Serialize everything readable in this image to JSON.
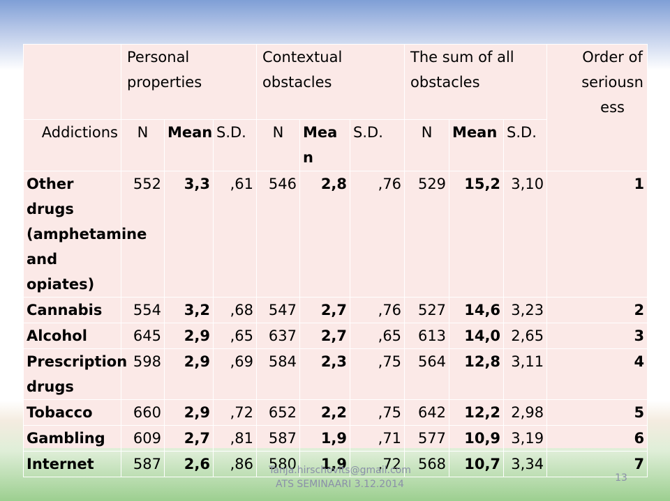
{
  "header": {
    "personal": "Personal properties",
    "contextual": "Contextual obstacles",
    "sum": "The sum of all obstacles",
    "order": "Order of seriousness"
  },
  "subheader": {
    "addictions": "Addictions",
    "n1": "N",
    "mean1": "Mean",
    "sd1": "S.D.",
    "n2": "N",
    "mean2": "Mean",
    "sd2": "S.D.",
    "n3": "N",
    "mean3": "Mean",
    "sd3": "S.D."
  },
  "rows": [
    {
      "label": "Other drugs (amphetamine and opiates)",
      "n1": "552",
      "m1": "3,3",
      "s1": ",61",
      "n2": "546",
      "m2": "2,8",
      "s2": ",76",
      "n3": "529",
      "m3": "15,2",
      "s3": "3,10",
      "order": "1"
    },
    {
      "label": "Cannabis",
      "n1": "554",
      "m1": "3,2",
      "s1": ",68",
      "n2": "547",
      "m2": "2,7",
      "s2": ",76",
      "n3": "527",
      "m3": "14,6",
      "s3": "3,23",
      "order": "2"
    },
    {
      "label": "Alcohol",
      "n1": "645",
      "m1": "2,9",
      "s1": ",65",
      "n2": "637",
      "m2": "2,7",
      "s2": ",65",
      "n3": "613",
      "m3": "14,0",
      "s3": "2,65",
      "order": "3"
    },
    {
      "label": "Prescription drugs",
      "n1": "598",
      "m1": "2,9",
      "s1": ",69",
      "n2": "584",
      "m2": "2,3",
      "s2": ",75",
      "n3": "564",
      "m3": "12,8",
      "s3": "3,11",
      "order": "4"
    },
    {
      "label": "Tobacco",
      "n1": "660",
      "m1": "2,9",
      "s1": ",72",
      "n2": "652",
      "m2": "2,2",
      "s2": ",75",
      "n3": "642",
      "m3": "12,2",
      "s3": "2,98",
      "order": "5"
    },
    {
      "label": "Gambling",
      "n1": "609",
      "m1": "2,7",
      "s1": ",81",
      "n2": "587",
      "m2": "1,9",
      "s2": ",71",
      "n3": "577",
      "m3": "10,9",
      "s3": "3,19",
      "order": "6"
    },
    {
      "label": "Internet",
      "n1": "587",
      "m1": "2,6",
      "s1": ",86",
      "n2": "580",
      "m2": "1,9",
      "s2": ",72",
      "n3": "568",
      "m3": "10,7",
      "s3": "3,34",
      "order": "7"
    }
  ],
  "footer": {
    "email": "Tanja.hirschovits@gmail.com ATS SEMINAARI 3.12.2014",
    "page": "13"
  }
}
